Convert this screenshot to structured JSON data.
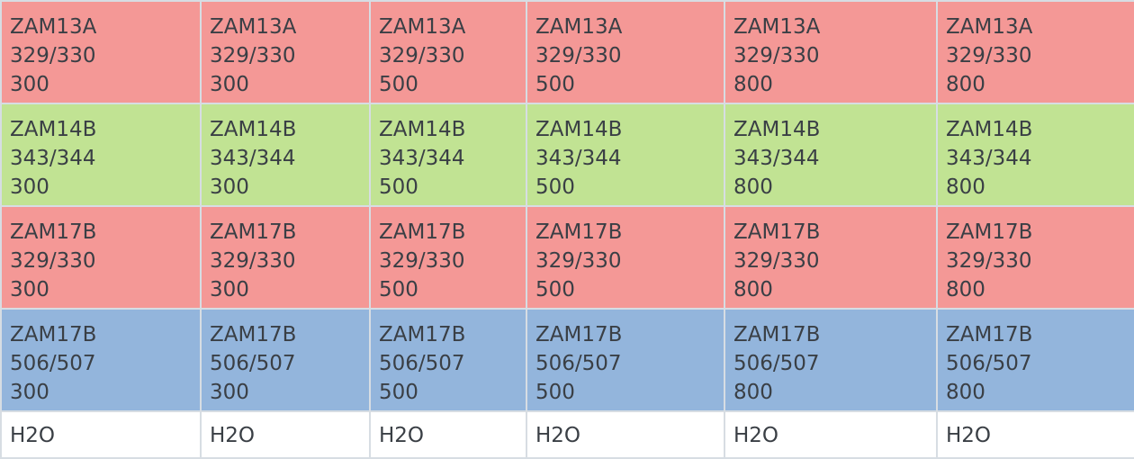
{
  "table": {
    "rows": [
      {
        "color": "#f49896",
        "cells": [
          [
            "ZAM13A",
            "329/330",
            "300"
          ],
          [
            "ZAM13A",
            "329/330",
            "300"
          ],
          [
            "ZAM13A",
            "329/330",
            "500"
          ],
          [
            "ZAM13A",
            "329/330",
            "500"
          ],
          [
            "ZAM13A",
            "329/330",
            "800"
          ],
          [
            "ZAM13A",
            "329/330",
            "800"
          ]
        ]
      },
      {
        "color": "#c1e393",
        "cells": [
          [
            "ZAM14B",
            "343/344",
            "300"
          ],
          [
            "ZAM14B",
            "343/344",
            "300"
          ],
          [
            "ZAM14B",
            "343/344",
            "500"
          ],
          [
            "ZAM14B",
            "343/344",
            "500"
          ],
          [
            "ZAM14B",
            "343/344",
            "800"
          ],
          [
            "ZAM14B",
            "343/344",
            "800"
          ]
        ]
      },
      {
        "color": "#f49896",
        "cells": [
          [
            "ZAM17B",
            "329/330",
            "300"
          ],
          [
            "ZAM17B",
            "329/330",
            "300"
          ],
          [
            "ZAM17B",
            "329/330",
            "500"
          ],
          [
            "ZAM17B",
            "329/330",
            "500"
          ],
          [
            "ZAM17B",
            "329/330",
            "800"
          ],
          [
            "ZAM17B",
            "329/330",
            "800"
          ]
        ]
      },
      {
        "color": "#93b5dc",
        "cells": [
          [
            "ZAM17B",
            "506/507",
            "300"
          ],
          [
            "ZAM17B",
            "506/507",
            "300"
          ],
          [
            "ZAM17B",
            "506/507",
            "500"
          ],
          [
            "ZAM17B",
            "506/507",
            "500"
          ],
          [
            "ZAM17B",
            "506/507",
            "800"
          ],
          [
            "ZAM17B",
            "506/507",
            "800"
          ]
        ]
      },
      {
        "color": "#ffffff",
        "cells": [
          [
            "H2O"
          ],
          [
            "H2O"
          ],
          [
            "H2O"
          ],
          [
            "H2O"
          ],
          [
            "H2O"
          ],
          [
            "H2O"
          ]
        ]
      }
    ]
  }
}
